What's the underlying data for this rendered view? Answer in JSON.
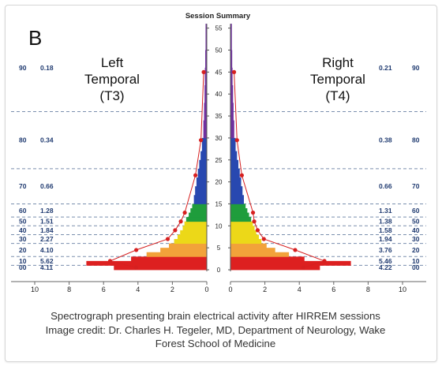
{
  "chart_data": {
    "type": "bar",
    "title": "Session Summary",
    "panel_letter": "B",
    "y_ticks": [
      0,
      5,
      10,
      15,
      20,
      25,
      30,
      35,
      40,
      45,
      50,
      55
    ],
    "ylim": [
      0,
      56
    ],
    "x_ticks": [
      "10",
      "8",
      "6",
      "4",
      "2",
      "0"
    ],
    "xlim": [
      0,
      10
    ],
    "percentile_labels": [
      "90",
      "80",
      "70",
      "60",
      "50",
      "40",
      "30",
      "20",
      "10",
      "00"
    ],
    "colors": {
      "purple": "#7030a0",
      "blue": "#2848b0",
      "green": "#1f9d3c",
      "yellow": "#ecd818",
      "orange": "#f2a23a",
      "red": "#dd2020",
      "marker": "#d62020",
      "label_text": "#1f3a70",
      "dashed_line": "#7a8fae"
    },
    "color_bands": [
      {
        "color": "purple",
        "from_hz": 30,
        "to_hz": 56
      },
      {
        "color": "blue",
        "from_hz": 15,
        "to_hz": 30
      },
      {
        "color": "green",
        "from_hz": 11,
        "to_hz": 15
      },
      {
        "color": "yellow",
        "from_hz": 6,
        "to_hz": 11
      },
      {
        "color": "orange",
        "from_hz": 3,
        "to_hz": 6
      },
      {
        "color": "red",
        "from_hz": 0,
        "to_hz": 3
      }
    ],
    "series": [
      {
        "name": "Left Temporal (T3)",
        "label_lines": [
          "Left",
          "Temporal",
          "(T3)"
        ],
        "percentile_values": [
          "0.18",
          "0.34",
          "0.66",
          "1.28",
          "1.51",
          "1.84",
          "2.27",
          "4.10",
          "5.62",
          "4.11"
        ],
        "bins": [
          {
            "from_hz": 0,
            "to_hz": 1,
            "value": 5.4
          },
          {
            "from_hz": 1,
            "to_hz": 2,
            "value": 7.0
          },
          {
            "from_hz": 2,
            "to_hz": 3,
            "value": 4.4
          },
          {
            "from_hz": 3,
            "to_hz": 4,
            "value": 3.5
          },
          {
            "from_hz": 4,
            "to_hz": 5,
            "value": 2.7
          },
          {
            "from_hz": 5,
            "to_hz": 6,
            "value": 2.2
          },
          {
            "from_hz": 6,
            "to_hz": 7,
            "value": 1.9
          },
          {
            "from_hz": 7,
            "to_hz": 8,
            "value": 1.7
          },
          {
            "from_hz": 8,
            "to_hz": 9,
            "value": 1.55
          },
          {
            "from_hz": 9,
            "to_hz": 10,
            "value": 1.4
          },
          {
            "from_hz": 10,
            "to_hz": 11,
            "value": 1.3
          },
          {
            "from_hz": 11,
            "to_hz": 12,
            "value": 1.2
          },
          {
            "from_hz": 12,
            "to_hz": 13,
            "value": 1.05
          },
          {
            "from_hz": 13,
            "to_hz": 14,
            "value": 0.95
          },
          {
            "from_hz": 14,
            "to_hz": 15,
            "value": 0.85
          },
          {
            "from_hz": 15,
            "to_hz": 17,
            "value": 0.75
          },
          {
            "from_hz": 17,
            "to_hz": 19,
            "value": 0.68
          },
          {
            "from_hz": 19,
            "to_hz": 21,
            "value": 0.6
          },
          {
            "from_hz": 21,
            "to_hz": 23,
            "value": 0.52
          },
          {
            "from_hz": 23,
            "to_hz": 25,
            "value": 0.44
          },
          {
            "from_hz": 25,
            "to_hz": 27,
            "value": 0.36
          },
          {
            "from_hz": 27,
            "to_hz": 30,
            "value": 0.28
          },
          {
            "from_hz": 30,
            "to_hz": 34,
            "value": 0.2
          },
          {
            "from_hz": 34,
            "to_hz": 38,
            "value": 0.16
          },
          {
            "from_hz": 38,
            "to_hz": 42,
            "value": 0.13
          },
          {
            "from_hz": 42,
            "to_hz": 46,
            "value": 0.11
          },
          {
            "from_hz": 46,
            "to_hz": 50,
            "value": 0.09
          },
          {
            "from_hz": 50,
            "to_hz": 56,
            "value": 0.07
          }
        ],
        "markers": [
          {
            "hz": 0.5,
            "value": 4.11
          },
          {
            "hz": 2,
            "value": 5.62
          },
          {
            "hz": 4.5,
            "value": 4.1
          },
          {
            "hz": 7,
            "value": 2.27
          },
          {
            "hz": 9,
            "value": 1.84
          },
          {
            "hz": 11,
            "value": 1.51
          },
          {
            "hz": 13,
            "value": 1.28
          },
          {
            "hz": 21.5,
            "value": 0.66
          },
          {
            "hz": 29.5,
            "value": 0.34
          },
          {
            "hz": 45,
            "value": 0.18
          }
        ]
      },
      {
        "name": "Right Temporal (T4)",
        "label_lines": [
          "Right",
          "Temporal",
          "(T4)"
        ],
        "percentile_values": [
          "0.21",
          "0.38",
          "0.66",
          "1.31",
          "1.38",
          "1.58",
          "1.94",
          "3.76",
          "5.46",
          "4.22"
        ],
        "bins": [
          {
            "from_hz": 0,
            "to_hz": 1,
            "value": 5.2
          },
          {
            "from_hz": 1,
            "to_hz": 2,
            "value": 7.0
          },
          {
            "from_hz": 2,
            "to_hz": 3,
            "value": 4.3
          },
          {
            "from_hz": 3,
            "to_hz": 4,
            "value": 3.4
          },
          {
            "from_hz": 4,
            "to_hz": 5,
            "value": 2.6
          },
          {
            "from_hz": 5,
            "to_hz": 6,
            "value": 2.1
          },
          {
            "from_hz": 6,
            "to_hz": 7,
            "value": 1.8
          },
          {
            "from_hz": 7,
            "to_hz": 8,
            "value": 1.65
          },
          {
            "from_hz": 8,
            "to_hz": 9,
            "value": 1.5
          },
          {
            "from_hz": 9,
            "to_hz": 10,
            "value": 1.4
          },
          {
            "from_hz": 10,
            "to_hz": 11,
            "value": 1.3
          },
          {
            "from_hz": 11,
            "to_hz": 12,
            "value": 1.2
          },
          {
            "from_hz": 12,
            "to_hz": 13,
            "value": 1.08
          },
          {
            "from_hz": 13,
            "to_hz": 14,
            "value": 0.98
          },
          {
            "from_hz": 14,
            "to_hz": 15,
            "value": 0.88
          },
          {
            "from_hz": 15,
            "to_hz": 17,
            "value": 0.78
          },
          {
            "from_hz": 17,
            "to_hz": 19,
            "value": 0.7
          },
          {
            "from_hz": 19,
            "to_hz": 21,
            "value": 0.62
          },
          {
            "from_hz": 21,
            "to_hz": 23,
            "value": 0.54
          },
          {
            "from_hz": 23,
            "to_hz": 25,
            "value": 0.46
          },
          {
            "from_hz": 25,
            "to_hz": 27,
            "value": 0.38
          },
          {
            "from_hz": 27,
            "to_hz": 30,
            "value": 0.3
          },
          {
            "from_hz": 30,
            "to_hz": 34,
            "value": 0.22
          },
          {
            "from_hz": 34,
            "to_hz": 38,
            "value": 0.18
          },
          {
            "from_hz": 38,
            "to_hz": 42,
            "value": 0.15
          },
          {
            "from_hz": 42,
            "to_hz": 46,
            "value": 0.12
          },
          {
            "from_hz": 46,
            "to_hz": 50,
            "value": 0.1
          },
          {
            "from_hz": 50,
            "to_hz": 56,
            "value": 0.08
          }
        ],
        "markers": [
          {
            "hz": 0.5,
            "value": 4.22
          },
          {
            "hz": 2,
            "value": 5.46
          },
          {
            "hz": 4.5,
            "value": 3.76
          },
          {
            "hz": 7,
            "value": 1.94
          },
          {
            "hz": 9,
            "value": 1.58
          },
          {
            "hz": 11,
            "value": 1.38
          },
          {
            "hz": 13,
            "value": 1.31
          },
          {
            "hz": 21.5,
            "value": 0.66
          },
          {
            "hz": 29.5,
            "value": 0.38
          },
          {
            "hz": 45,
            "value": 0.21
          }
        ]
      }
    ],
    "percentile_bands": [
      {
        "label_index": 0,
        "from_hz": 36,
        "to_hz": 56
      },
      {
        "label_index": 1,
        "from_hz": 23,
        "to_hz": 36
      },
      {
        "label_index": 2,
        "from_hz": 15,
        "to_hz": 23
      },
      {
        "label_index": 3,
        "from_hz": 12,
        "to_hz": 15
      },
      {
        "label_index": 4,
        "from_hz": 10,
        "to_hz": 12
      },
      {
        "label_index": 5,
        "from_hz": 8,
        "to_hz": 10
      },
      {
        "label_index": 6,
        "from_hz": 6,
        "to_hz": 8
      },
      {
        "label_index": 7,
        "from_hz": 3,
        "to_hz": 6
      },
      {
        "label_index": 8,
        "from_hz": 1,
        "to_hz": 3
      },
      {
        "label_index": 9,
        "from_hz": 0,
        "to_hz": 1
      }
    ]
  },
  "caption": {
    "line1": "Spectrograph presenting brain electrical activity after HIRREM sessions",
    "line2": "Image credit: Dr. Charles H. Tegeler, MD, Department of Neurology, Wake",
    "line3": "Forest School of Medicine"
  }
}
